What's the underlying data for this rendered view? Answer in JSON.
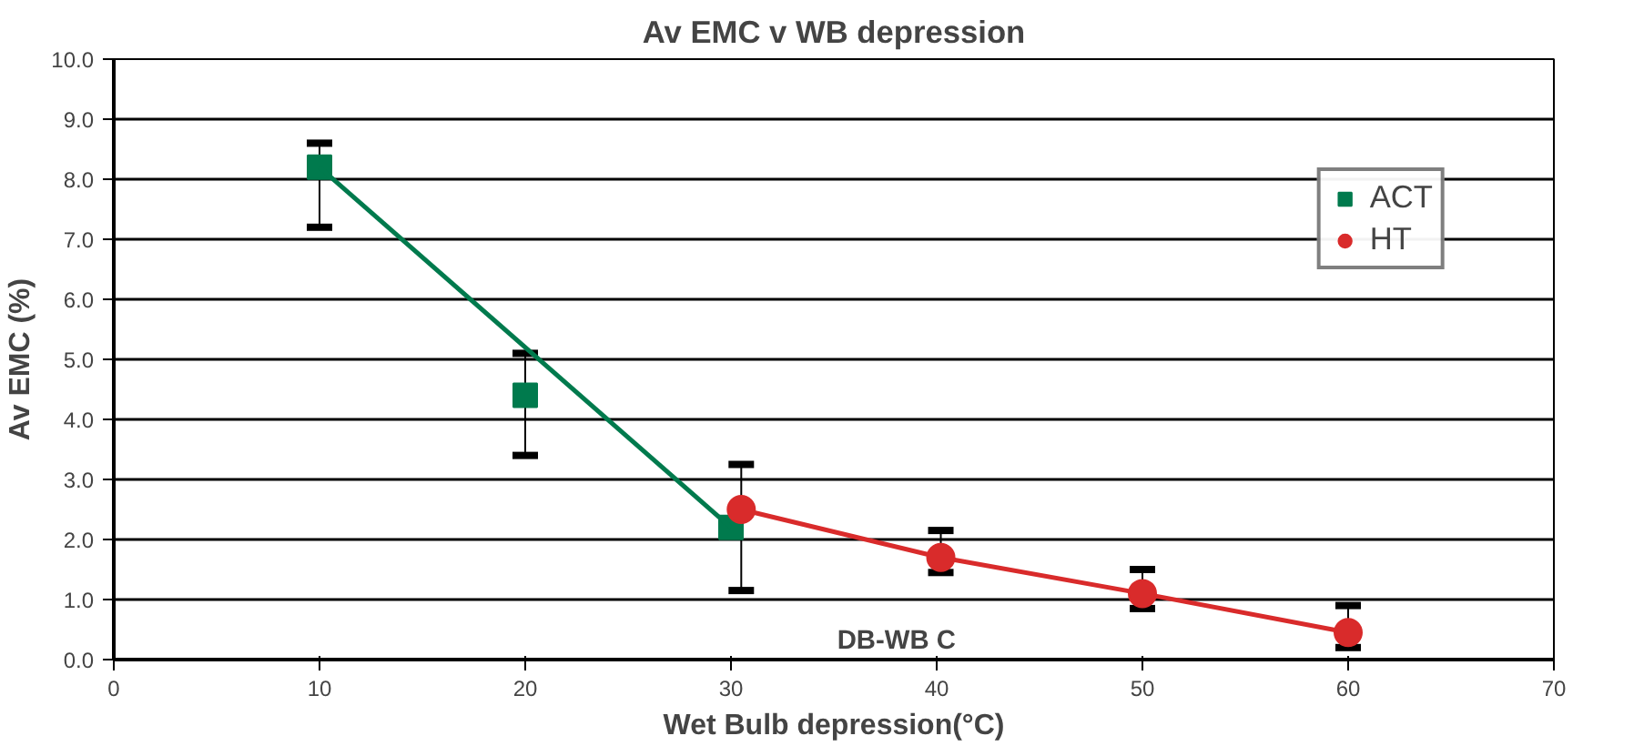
{
  "chart_data": {
    "type": "scatter",
    "title": "Av EMC v WB depression",
    "xlabel": "Wet Bulb depression(°C)",
    "ylabel": "Av EMC (%)",
    "xlim": [
      0,
      70
    ],
    "xticks": [
      0,
      10,
      20,
      30,
      40,
      50,
      60,
      70
    ],
    "ylim": [
      0,
      10
    ],
    "yticks": [
      {
        "value": 0,
        "label": "0.0"
      },
      {
        "value": 1,
        "label": "1.0"
      },
      {
        "value": 2,
        "label": "2.0"
      },
      {
        "value": 3,
        "label": "3.0"
      },
      {
        "value": 4,
        "label": "4.0"
      },
      {
        "value": 5,
        "label": "5.0"
      },
      {
        "value": 6,
        "label": "6.0"
      },
      {
        "value": 7,
        "label": "7.0"
      },
      {
        "value": 8,
        "label": "8.0"
      },
      {
        "value": 9,
        "label": "9.0"
      },
      {
        "value": 10,
        "label": "10.0"
      }
    ],
    "grid": "y",
    "legend": "top right",
    "annotations": [
      "DB-WB C"
    ],
    "series": [
      {
        "name": "ACT",
        "marker": "square",
        "color": "#007a4d",
        "x": [
          10,
          20,
          30
        ],
        "values": [
          8.2,
          4.4,
          2.2
        ],
        "errors": [
          [
            7.2,
            8.6
          ],
          [
            3.4,
            5.1
          ],
          null
        ]
      },
      {
        "type": "line",
        "marker": "none",
        "color": "#007a4d",
        "x": [
          10,
          30
        ],
        "values": [
          8.2,
          2.2
        ]
      },
      {
        "name": "HT",
        "type": "line",
        "marker": "circle",
        "color": "#d92b2b",
        "x": [
          30.5,
          40.2,
          50,
          60
        ],
        "values": [
          2.5,
          1.7,
          1.1,
          0.45
        ],
        "errors": [
          [
            1.15,
            3.25
          ],
          [
            1.45,
            2.15
          ],
          [
            0.85,
            1.5
          ],
          [
            0.2,
            0.9
          ]
        ]
      }
    ]
  }
}
